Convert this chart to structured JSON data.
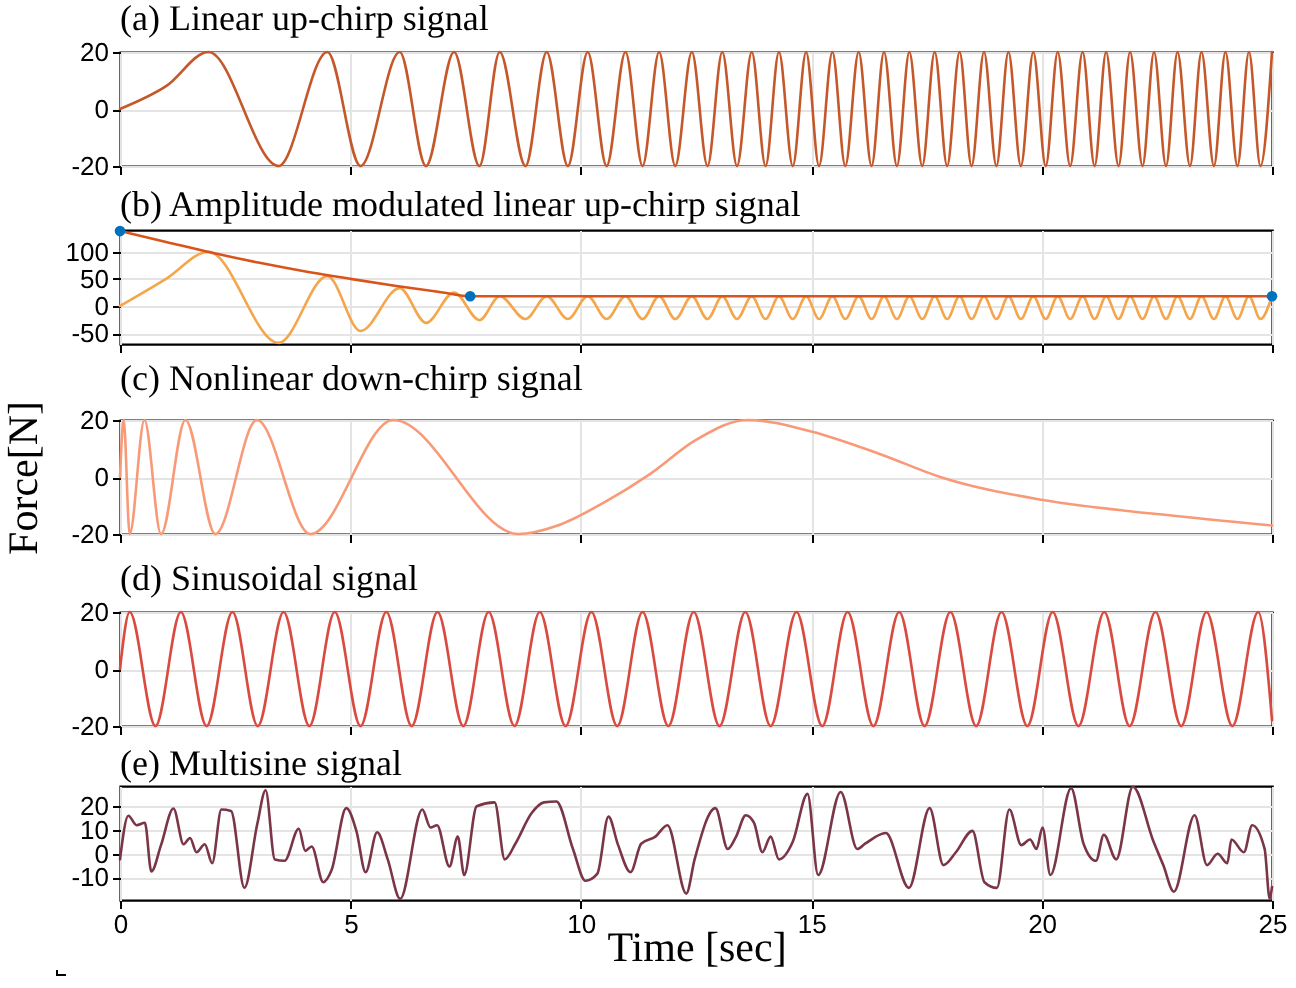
{
  "chart_data": [
    {
      "type": "line",
      "title": "(a) Linear up-chirp signal",
      "xlim": [
        0,
        25
      ],
      "xticks": [
        0,
        5,
        10,
        15,
        20,
        25
      ],
      "ylim": [
        -20,
        20
      ],
      "yticks": [
        -20,
        0,
        20
      ],
      "grid": true,
      "tick_labels": "y",
      "series": [
        {
          "color": "#c4582a",
          "x": [
            0,
            1.0,
            1.92,
            3.44,
            4.5,
            5.22,
            6.07,
            6.64,
            7.25,
            7.8,
            8.24,
            8.8,
            9.26,
            9.72,
            10.15,
            10.56,
            10.97,
            11.34,
            11.7,
            12.05,
            12.41,
            12.75,
            13.07,
            13.39,
            13.71,
            14.01,
            14.3,
            14.6,
            14.89,
            15.17,
            15.46,
            15.74,
            16.03,
            16.31,
            16.58,
            16.86,
            17.13,
            17.41,
            17.68,
            17.95,
            18.22,
            18.48,
            18.75,
            19.02,
            19.28,
            19.55,
            19.82,
            20.09,
            20.35,
            20.62,
            20.89,
            21.15,
            21.4,
            21.67,
            21.92,
            22.19,
            22.44,
            22.7,
            22.95,
            23.22,
            23.47,
            23.74,
            23.99,
            24.25,
            24.5,
            24.75,
            25
          ],
          "values": [
            0,
            8,
            20,
            -20,
            20,
            -20,
            20,
            -20,
            20,
            -20,
            20,
            -20,
            20,
            -20,
            20,
            -20,
            20,
            -20,
            20,
            -20,
            20,
            -20,
            20,
            -20,
            20,
            -20,
            20,
            -20,
            20,
            -20,
            20,
            -20,
            20,
            -20,
            20,
            -20,
            20,
            -20,
            20,
            -20,
            20,
            -20,
            20,
            -20,
            20,
            -20,
            20,
            -20,
            20,
            -20,
            20,
            -20,
            20,
            -20,
            20,
            -20,
            20,
            -20,
            20,
            -20,
            20,
            -20,
            20,
            -20,
            20,
            -20,
            20
          ]
        }
      ]
    },
    {
      "type": "line",
      "title": "(b) Amplitude modulated linear up-chirp signal",
      "xlim": [
        0,
        25
      ],
      "xticks": [
        0,
        5,
        10,
        15,
        20,
        25
      ],
      "ylim": [
        -70,
        140
      ],
      "yticks": [
        -50,
        0,
        50,
        100
      ],
      "grid": true,
      "tick_labels": "y",
      "series": [
        {
          "color": "#f5a64c",
          "x": [
            0,
            1.0,
            1.92,
            3.44,
            4.5,
            5.22,
            6.07,
            6.64,
            7.25,
            7.8,
            8.24,
            8.8,
            9.26,
            9.72,
            10.15,
            10.56,
            10.97,
            11.34,
            11.7,
            12.05,
            12.41,
            12.75,
            13.07,
            13.39,
            13.71,
            14.01,
            14.3,
            14.6,
            14.89,
            15.17,
            15.46,
            15.74,
            16.03,
            16.31,
            16.58,
            16.86,
            17.13,
            17.41,
            17.68,
            17.95,
            18.22,
            18.48,
            18.75,
            19.02,
            19.28,
            19.55,
            19.82,
            20.09,
            20.35,
            20.62,
            20.89,
            21.15,
            21.4,
            21.67,
            21.92,
            22.19,
            22.44,
            22.7,
            22.95,
            23.22,
            23.47,
            23.74,
            23.99,
            24.25,
            24.5,
            24.75,
            25
          ],
          "values": [
            0,
            50,
            100,
            -68,
            55,
            -46,
            33,
            -31,
            25,
            -26,
            18,
            -24,
            18,
            -24,
            18,
            -24,
            18,
            -24,
            18,
            -24,
            18,
            -24,
            18,
            -24,
            18,
            -24,
            18,
            -24,
            18,
            -24,
            18,
            -24,
            18,
            -24,
            18,
            -24,
            18,
            -24,
            18,
            -24,
            18,
            -24,
            18,
            -24,
            18,
            -24,
            18,
            -24,
            18,
            -24,
            18,
            -24,
            18,
            -24,
            18,
            -24,
            18,
            -24,
            18,
            -24,
            18,
            -24,
            18,
            -24,
            18,
            -24,
            18
          ]
        },
        {
          "color": "#d9541a",
          "x": [
            0,
            1,
            2,
            3,
            4,
            5,
            6,
            7,
            7.6,
            25
          ],
          "values": [
            138,
            118,
            98,
            80,
            64,
            50,
            37,
            25,
            18,
            18
          ]
        },
        {
          "type": "scatter",
          "color": "#0072bd",
          "x": [
            0,
            7.6,
            25
          ],
          "values": [
            138,
            18,
            18
          ]
        }
      ]
    },
    {
      "type": "line",
      "title": "(c) Nonlinear down-chirp signal",
      "ylabel": "Force[N]",
      "xlim": [
        0,
        25
      ],
      "xticks": [
        0,
        5,
        10,
        15,
        20,
        25
      ],
      "ylim": [
        -20,
        20
      ],
      "yticks": [
        -20,
        0,
        20
      ],
      "grid": true,
      "tick_labels": "y",
      "series": [
        {
          "color": "#f89a78",
          "x": [
            0,
            0.08,
            0.21,
            0.53,
            0.89,
            1.42,
            2.07,
            2.97,
            4.13,
            5.93,
            8.64,
            9.5,
            10.5,
            11.5,
            12.5,
            13.62,
            15,
            16.5,
            17.8,
            20,
            22.5,
            25
          ],
          "values": [
            0,
            20,
            -20,
            20,
            -20,
            20,
            -20,
            20,
            -20,
            20,
            -20,
            -17,
            -9,
            1,
            13,
            20,
            16,
            8,
            0,
            -8,
            -13,
            -17
          ]
        }
      ]
    },
    {
      "type": "line",
      "title": "(d) Sinusoidal signal",
      "xlim": [
        0,
        25
      ],
      "xticks": [
        0,
        5,
        10,
        15,
        20,
        25
      ],
      "ylim": [
        -20,
        20
      ],
      "yticks": [
        -20,
        0,
        20
      ],
      "grid": true,
      "tick_labels": "y",
      "series": [
        {
          "color": "#d94a40",
          "x": [
            0,
            0.21,
            0.77,
            1.32,
            1.88,
            2.44,
            2.99,
            3.55,
            4.11,
            4.66,
            5.22,
            5.78,
            6.33,
            6.89,
            7.45,
            8.0,
            8.56,
            9.11,
            9.67,
            10.23,
            10.79,
            11.34,
            11.9,
            12.45,
            13.01,
            13.57,
            14.12,
            14.68,
            15.24,
            15.79,
            16.35,
            16.91,
            17.46,
            18.02,
            18.58,
            19.13,
            19.69,
            20.24,
            20.8,
            21.36,
            21.91,
            22.47,
            23.03,
            23.58,
            24.14,
            24.7,
            25
          ],
          "values": [
            0,
            20,
            -20,
            20,
            -20,
            20,
            -20,
            20,
            -20,
            20,
            -20,
            20,
            -20,
            20,
            -20,
            20,
            -20,
            20,
            -20,
            20,
            -20,
            20,
            -20,
            20,
            -20,
            20,
            -20,
            20,
            -20,
            20,
            -20,
            20,
            -20,
            20,
            -20,
            20,
            -20,
            20,
            -20,
            20,
            -20,
            20,
            -20,
            20,
            -20,
            20,
            -18
          ]
        }
      ]
    },
    {
      "type": "line",
      "title": "(e) Multisine signal",
      "xlabel": "Time [sec]",
      "xlim": [
        0,
        25
      ],
      "xticks": [
        0,
        5,
        10,
        15,
        20,
        25
      ],
      "ylim": [
        -19.5,
        28.5
      ],
      "yticks": [
        -10,
        0,
        10,
        20
      ],
      "grid": true,
      "series": [
        {
          "color": "#7a3546",
          "x": [
            0,
            0.18,
            0.36,
            0.54,
            0.68,
            0.89,
            1.16,
            1.38,
            1.52,
            1.66,
            1.84,
            2.0,
            2.2,
            2.41,
            2.7,
            2.98,
            3.16,
            3.36,
            3.57,
            3.88,
            4.02,
            4.16,
            4.41,
            4.59,
            4.91,
            5.13,
            5.33,
            5.58,
            5.81,
            6.08,
            6.56,
            6.74,
            6.88,
            7.15,
            7.33,
            7.47,
            7.74,
            8.13,
            8.35,
            8.58,
            8.93,
            9.2,
            9.47,
            9.83,
            10.1,
            10.36,
            10.6,
            10.81,
            11.08,
            11.31,
            11.62,
            11.88,
            12.29,
            12.47,
            12.92,
            13.19,
            13.37,
            13.58,
            13.76,
            13.94,
            14.12,
            14.3,
            14.6,
            14.92,
            15.15,
            15.64,
            16.0,
            16.17,
            16.62,
            17.12,
            17.57,
            17.87,
            18.14,
            18.5,
            18.76,
            19.03,
            19.3,
            19.56,
            19.75,
            19.89,
            20.02,
            20.19,
            20.64,
            20.91,
            21.18,
            21.35,
            21.62,
            21.98,
            22.43,
            22.64,
            22.87,
            23.32,
            23.59,
            23.82,
            24.03,
            24.12,
            24.39,
            24.57,
            24.84,
            24.95,
            25
          ],
          "values": [
            -2.4,
            16,
            12,
            13,
            -7.5,
            3.6,
            19,
            4,
            6.6,
            0.6,
            4,
            -4,
            18.6,
            18,
            -14.4,
            12.6,
            26.7,
            -2.4,
            -3,
            10.5,
            1.2,
            3,
            -12,
            -7,
            19.2,
            9.6,
            -7.8,
            9,
            -2.4,
            -19,
            18.6,
            11,
            12,
            -5.4,
            7.2,
            -9,
            20,
            21.6,
            -2.4,
            4.2,
            17,
            21.6,
            22,
            2,
            -11.4,
            -8.4,
            15.6,
            3.6,
            -7.8,
            4.2,
            7.2,
            12,
            -16.8,
            -2.4,
            19.2,
            2,
            7.2,
            16.2,
            13,
            0.6,
            7.2,
            -2.4,
            5,
            25.2,
            -9,
            26,
            2,
            4.2,
            8.7,
            -14.4,
            19.2,
            -4.8,
            0.6,
            9.6,
            -12,
            -14.4,
            18.6,
            3.6,
            6,
            2,
            11,
            -9,
            27.6,
            4.2,
            -3,
            8,
            -2.4,
            28.2,
            5,
            -4.8,
            -16,
            16.2,
            -4.8,
            0,
            -4,
            6,
            0.6,
            12,
            2,
            -19,
            -14
          ]
        }
      ]
    }
  ]
}
